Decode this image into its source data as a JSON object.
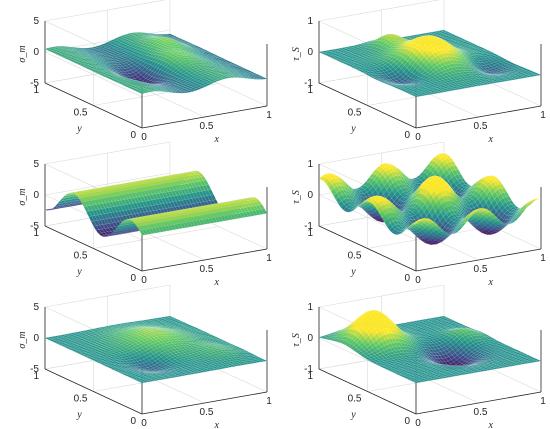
{
  "figure": {
    "colormap": [
      "#440154",
      "#3b528b",
      "#21918c",
      "#5ec962",
      "#fde725"
    ],
    "mesh_edge_color": "#ffffff",
    "background": "#ffffff"
  },
  "chart_data": [
    {
      "type": "surface",
      "row": 1,
      "col": 1,
      "zlabel": "σ_m",
      "xlabel": "x",
      "ylabel": "y",
      "zlim": [
        -5,
        5
      ],
      "zticks": [
        "-5",
        "0",
        "5"
      ],
      "xticks": [
        "0",
        "0.5",
        "1"
      ],
      "yticks": [
        "1",
        "0.5",
        "0"
      ],
      "surface": [
        {
          "ax": 0.6,
          "fx": 1.6,
          "px": 0.3,
          "ay": 0.0,
          "fy": 0.0,
          "py": 0.0
        },
        {
          "a": 1.5,
          "x0": 0.55,
          "y0": 0.45,
          "s": 0.12
        },
        {
          "a": -2.2,
          "x0": 0.35,
          "y0": 0.45,
          "s": 0.12
        },
        {
          "a": 1.2,
          "x0": 0.75,
          "y0": 0.7,
          "s": 0.1
        }
      ]
    },
    {
      "type": "surface",
      "row": 1,
      "col": 2,
      "zlabel": "τ_S",
      "xlabel": "x",
      "ylabel": "y",
      "zlim": [
        -1.5,
        1.5
      ],
      "zticks": [
        "-1",
        "0",
        "1"
      ],
      "xticks": [
        "0",
        "0.5",
        "1"
      ],
      "yticks": [
        "1",
        "0.5",
        "0"
      ],
      "surface": [
        {
          "a": 1.3,
          "x0": 0.5,
          "y0": 0.5,
          "s": 0.16
        },
        {
          "a": 0.6,
          "x0": 0.45,
          "y0": 0.85,
          "s": 0.08
        },
        {
          "a": -0.5,
          "x0": 0.2,
          "y0": 0.4,
          "s": 0.1
        },
        {
          "a": -0.4,
          "x0": 0.8,
          "y0": 0.3,
          "s": 0.1
        }
      ]
    },
    {
      "type": "surface",
      "row": 2,
      "col": 1,
      "zlabel": "σ_m",
      "xlabel": "x",
      "ylabel": "y",
      "zlim": [
        -5,
        5
      ],
      "zticks": [
        "-5",
        "0",
        "5"
      ],
      "xticks": [
        "0",
        "0.5",
        "1"
      ],
      "yticks": [
        "1",
        "0.5",
        "0"
      ],
      "surface": [
        {
          "ax": 0.0,
          "fx": 0.0,
          "px": 0.0,
          "ay": 2.4,
          "fy": 1.7,
          "py": 0.1
        }
      ]
    },
    {
      "type": "surface",
      "row": 2,
      "col": 2,
      "zlabel": "τ_S",
      "xlabel": "x",
      "ylabel": "y",
      "zlim": [
        -1.5,
        1.5
      ],
      "zticks": [
        "-1",
        "0",
        "1"
      ],
      "xticks": [
        "0",
        "0.5",
        "1"
      ],
      "yticks": [
        "1",
        "0.5",
        "0"
      ],
      "surface": [
        {
          "ax": 0.5,
          "fx": 2.2,
          "px": 0.2,
          "ay": 0.5,
          "fy": 2.0,
          "py": 0.6
        },
        {
          "a": 0.6,
          "x0": 0.6,
          "y0": 0.55,
          "s": 0.1
        }
      ]
    },
    {
      "type": "surface",
      "row": 3,
      "col": 1,
      "zlabel": "σ_m",
      "xlabel": "x",
      "ylabel": "y",
      "zlim": [
        -5,
        5
      ],
      "zticks": [
        "-5",
        "0",
        "5"
      ],
      "xticks": [
        "0",
        "0.5",
        "1"
      ],
      "yticks": [
        "1",
        "0.5",
        "0"
      ],
      "surface": [
        {
          "a": 2.0,
          "x0": 0.55,
          "y0": 0.6,
          "s": 0.18
        },
        {
          "a": -1.2,
          "x0": 0.3,
          "y0": 0.3,
          "s": 0.1
        },
        {
          "a": 0.8,
          "x0": 0.8,
          "y0": 0.25,
          "s": 0.1
        }
      ]
    },
    {
      "type": "surface",
      "row": 3,
      "col": 2,
      "zlabel": "τ_S",
      "xlabel": "x",
      "ylabel": "y",
      "zlim": [
        -1.5,
        1.5
      ],
      "zticks": [
        "-1",
        "0",
        "1"
      ],
      "xticks": [
        "0",
        "0.5",
        "1"
      ],
      "yticks": [
        "1",
        "0.5",
        "0"
      ],
      "surface": [
        {
          "a": 1.6,
          "x0": 0.25,
          "y0": 0.75,
          "s": 0.13
        },
        {
          "a": -0.8,
          "x0": 0.6,
          "y0": 0.4,
          "s": 0.12
        },
        {
          "a": 0.4,
          "x0": 0.85,
          "y0": 0.6,
          "s": 0.08
        }
      ]
    }
  ]
}
